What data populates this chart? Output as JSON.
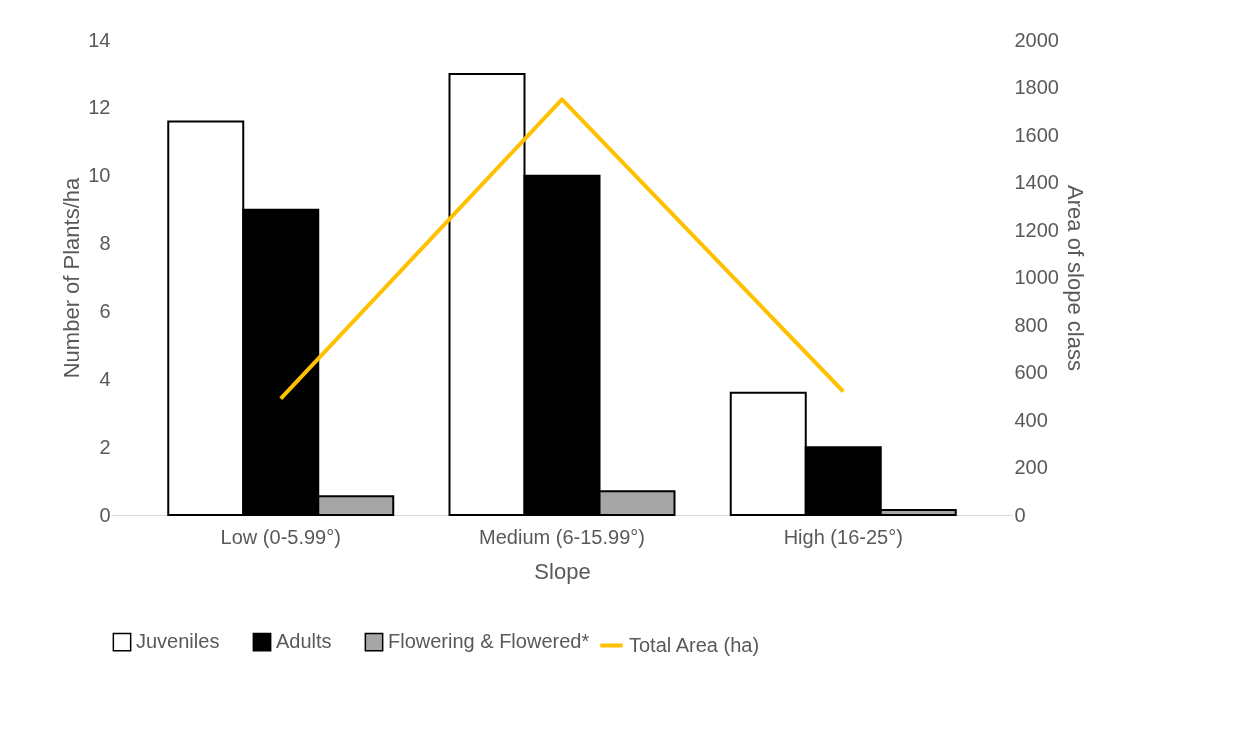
{
  "chart_data": {
    "type": "bar",
    "xlabel": "Slope",
    "ylabel": "Number of Plants/ha",
    "y2label": "Area of slope class",
    "categories": [
      "Low (0-5.99°)",
      "Medium (6-15.99°)",
      "High (16-25°)"
    ],
    "series": [
      {
        "name": "Juveniles",
        "color": "#ffffff",
        "values": [
          11.6,
          13.0,
          3.6
        ]
      },
      {
        "name": "Adults",
        "color": "#000000",
        "values": [
          9.0,
          10.0,
          2.0
        ]
      },
      {
        "name": "Flowering & Flowered*",
        "color": "#a6a6a6",
        "values": [
          0.55,
          0.7,
          0.15
        ]
      },
      {
        "name": "Total Area (ha)",
        "color": "#ffc000",
        "type": "line",
        "axis": "y2",
        "values": [
          490,
          1750,
          520
        ]
      }
    ],
    "ylim": [
      0,
      14
    ],
    "yticks": [
      0,
      2,
      4,
      6,
      8,
      10,
      12,
      14
    ],
    "y2lim": [
      0,
      2000
    ],
    "y2ticks": [
      0,
      200,
      400,
      600,
      800,
      1000,
      1200,
      1400,
      1600,
      1800,
      2000
    ],
    "legend": "bottom",
    "grid": false
  }
}
